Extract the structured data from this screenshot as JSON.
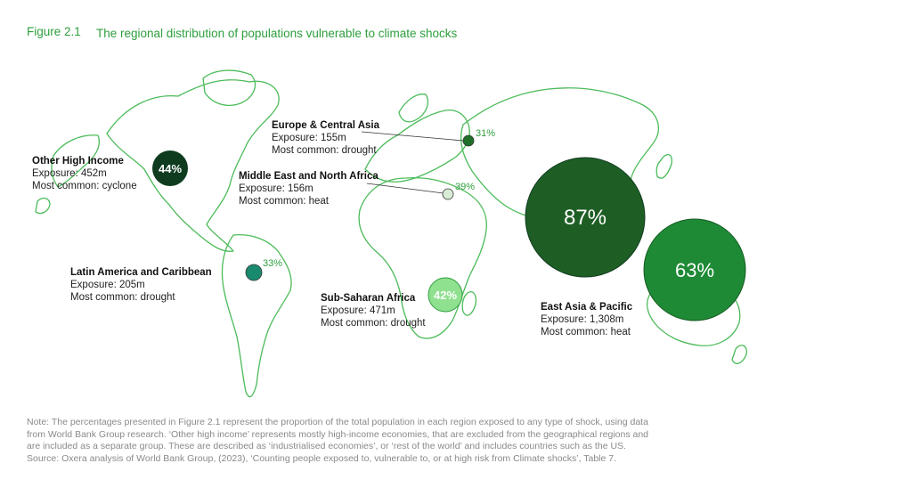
{
  "figure": {
    "label": "Figure 2.1",
    "title": "The regional distribution of populations vulnerable to climate shocks"
  },
  "colors": {
    "accent": "#2e9e3e",
    "outline": "#4cbb5a",
    "darkest": "#0f3b1f",
    "dark": "#1e6e2a",
    "mid": "#1f8a36",
    "teal": "#1a8a6e",
    "light": "#8fe08f"
  },
  "regions": [
    {
      "id": "other-high-income",
      "name": "Other High Income",
      "exposure": "Exposure: 452m",
      "common": "Most common: cyclone",
      "percent": "44%",
      "percent_value": 44
    },
    {
      "id": "europe-central-asia",
      "name": "Europe & Central Asia",
      "exposure": "Exposure: 155m",
      "common": "Most common: drought",
      "percent": "31%",
      "percent_value": 31
    },
    {
      "id": "middle-east-north-africa",
      "name": "Middle East and North Africa",
      "exposure": "Exposure: 156m",
      "common": "Most common: heat",
      "percent": "39%",
      "percent_value": 39
    },
    {
      "id": "latin-america-caribbean",
      "name": "Latin America and Caribbean",
      "exposure": "Exposure: 205m",
      "common": "Most common: drought",
      "percent": "33%",
      "percent_value": 33
    },
    {
      "id": "sub-saharan-africa",
      "name": "Sub-Saharan Africa",
      "exposure": "Exposure: 471m",
      "common": "Most common: drought",
      "percent": "42%",
      "percent_value": 42
    },
    {
      "id": "east-asia-pacific",
      "name": "East Asia & Pacific",
      "exposure": "Exposure: 1,308m",
      "common": "Most common: heat",
      "percent": "63%",
      "percent_value": 63
    },
    {
      "id": "south-asia",
      "percent": "87%",
      "percent_value": 87
    }
  ],
  "note": {
    "text": "Note: The percentages presented in Figure 2.1 represent the proportion of the total population in each region exposed to any type of shock, using data from World Bank Group research. ‘Other high income’ represents mostly high-income economies, that are excluded from the geographical regions and are included as a separate group. These are described as ‘industrialised economies’, or ‘rest of the world’ and includes countries such as the US.",
    "source": "Source: Oxera analysis of World Bank Group, (2023), ‘Counting people exposed to, vulnerable to, or at high risk from Climate shocks’, Table 7."
  }
}
